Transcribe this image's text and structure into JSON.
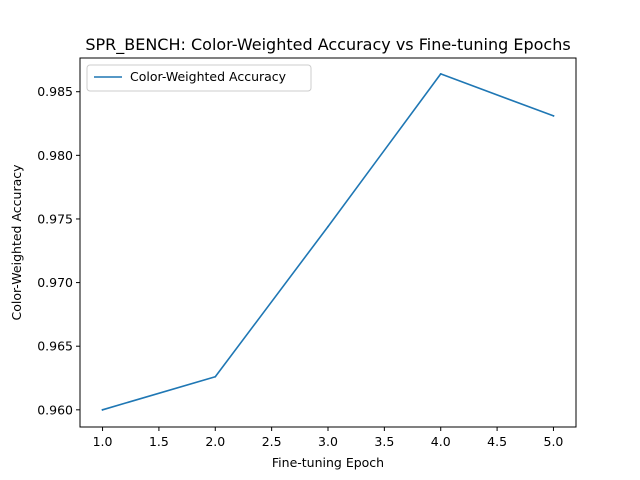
{
  "chart_data": {
    "type": "line",
    "title": "SPR_BENCH: Color-Weighted Accuracy vs Fine-tuning Epochs",
    "xlabel": "Fine-tuning Epoch",
    "ylabel": "Color-Weighted Accuracy",
    "xlim": [
      0.8,
      5.2
    ],
    "ylim": [
      0.95865,
      0.98765
    ],
    "xticks": [
      "1.0",
      "1.5",
      "2.0",
      "2.5",
      "3.0",
      "3.5",
      "4.0",
      "4.5",
      "5.0"
    ],
    "yticks": [
      "0.960",
      "0.965",
      "0.970",
      "0.975",
      "0.980",
      "0.985"
    ],
    "grid": false,
    "legend_position": "upper-left",
    "series": [
      {
        "name": "Color-Weighted Accuracy",
        "color": "#1f77b4",
        "x": [
          1,
          2,
          3,
          4,
          5
        ],
        "y": [
          0.96,
          0.9626,
          0.9744,
          0.9864,
          0.9831
        ]
      }
    ]
  }
}
